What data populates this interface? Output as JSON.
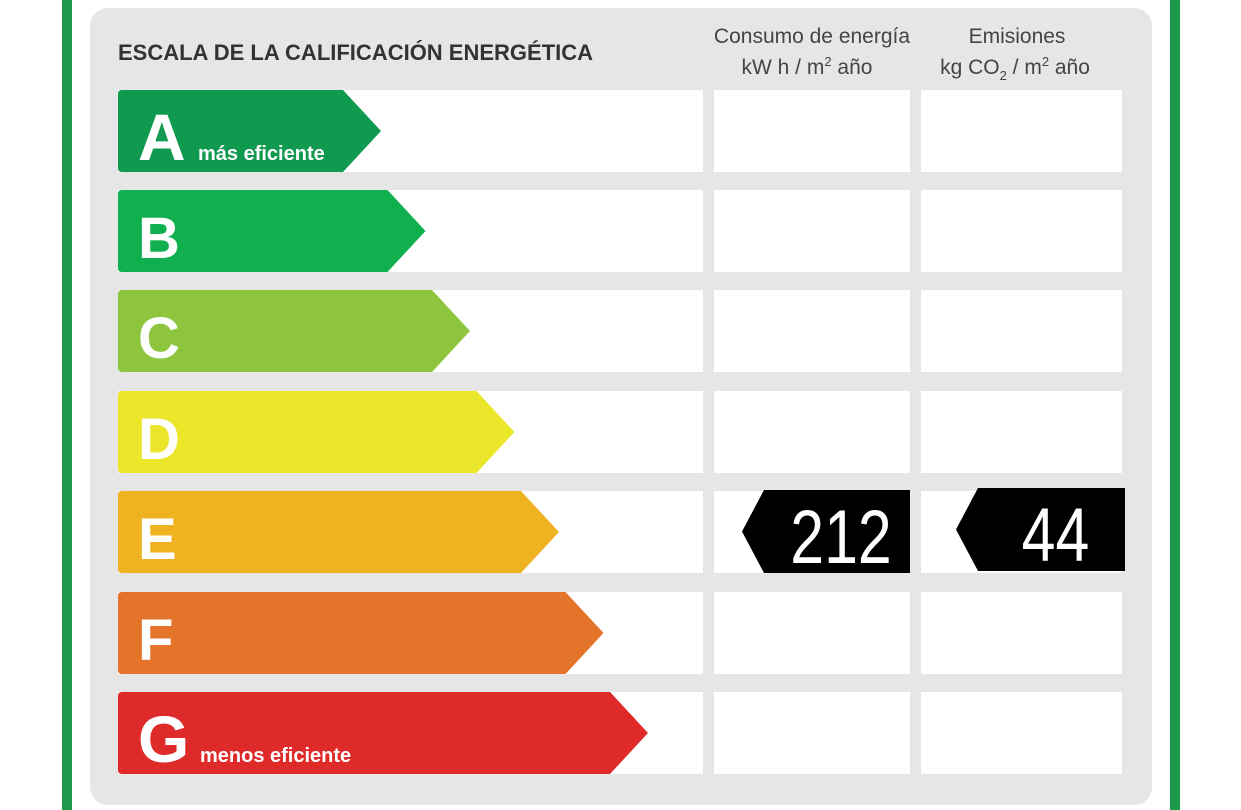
{
  "title": "ESCALA DE LA CALIFICACIÓN ENERGÉTICA",
  "columns": [
    {
      "name": "Consumo de energía",
      "unit": [
        "kW h  / m",
        "2",
        " año"
      ]
    },
    {
      "name": "Emisiones",
      "unit": [
        "kg CO",
        "2",
        "  / m",
        "2",
        " año"
      ]
    }
  ],
  "rows": [
    {
      "letter": "A",
      "caption": "más eficiente",
      "color": "#0f9a4f"
    },
    {
      "letter": "B",
      "color": "#10b04f"
    },
    {
      "letter": "C",
      "color": "#8dc53f"
    },
    {
      "letter": "D",
      "color": "#ebe62a"
    },
    {
      "letter": "E",
      "color": "#efb321",
      "consumo": 212,
      "emisiones": 44
    },
    {
      "letter": "F",
      "color": "#e3742a"
    },
    {
      "letter": "G",
      "caption": "menos eficiente",
      "color": "#df2a2a"
    }
  ]
}
